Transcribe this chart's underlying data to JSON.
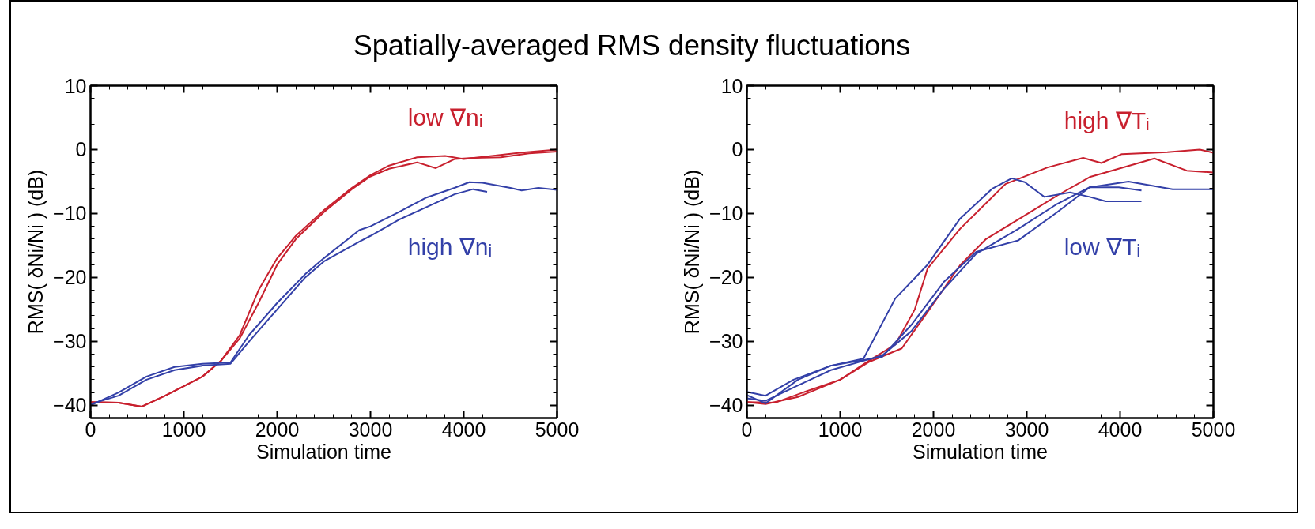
{
  "chart_data": [
    {
      "type": "line",
      "title": "Spatially-averaged RMS density fluctuations",
      "xlabel": "Simulation time",
      "ylabel": "RMS( δNi/Ni ) (dB)",
      "xlim": [
        0,
        5000
      ],
      "ylim": [
        -42,
        10
      ],
      "xticks": [
        0,
        1000,
        2000,
        3000,
        4000,
        5000
      ],
      "yticks": [
        -40,
        -30,
        -20,
        -10,
        0,
        10
      ],
      "grid": false,
      "series": [
        {
          "name": "low ∇nᵢ",
          "color": "#c8202e",
          "x": [
            0,
            300,
            550,
            800,
            1000,
            1200,
            1400,
            1600,
            1800,
            2000,
            2200,
            2500,
            2800,
            3000,
            3200,
            3500,
            3800,
            4000,
            4300,
            4600,
            5000
          ],
          "values": [
            -39.5,
            -39.6,
            -40.2,
            -38.5,
            -37,
            -35.5,
            -33,
            -29,
            -22,
            -17,
            -13.5,
            -9.5,
            -6,
            -4,
            -2.5,
            -1.2,
            -1,
            -1.5,
            -1,
            -0.5,
            0
          ]
        },
        {
          "color": "#c8202e",
          "x": [
            0,
            300,
            550,
            800,
            1000,
            1200,
            1400,
            1600,
            1800,
            2000,
            2200,
            2500,
            2800,
            3000,
            3200,
            3500,
            3700,
            3900,
            4100,
            4400,
            4700,
            5000
          ],
          "values": [
            -39.5,
            -39.6,
            -40.2,
            -38.5,
            -37,
            -35.5,
            -33,
            -29.5,
            -24,
            -18,
            -14,
            -9.8,
            -6.2,
            -4.2,
            -3,
            -2,
            -2.9,
            -1.5,
            -1.3,
            -1.2,
            -0.6,
            -0.3
          ]
        },
        {
          "name": "high ∇nᵢ",
          "color": "#3340a8",
          "x": [
            0,
            300,
            600,
            900,
            1200,
            1500,
            1700,
            2000,
            2300,
            2500,
            2880,
            3000,
            3300,
            3600,
            3900,
            4060,
            4200,
            4500,
            4620,
            4800,
            5000
          ],
          "values": [
            -40,
            -38,
            -35.5,
            -34,
            -33.5,
            -33.3,
            -29,
            -24,
            -19.5,
            -17,
            -12.6,
            -12,
            -9.8,
            -7.5,
            -6,
            -5.1,
            -5.2,
            -6,
            -6.4,
            -6,
            -6.3
          ]
        },
        {
          "color": "#3340a8",
          "x": [
            0,
            300,
            600,
            900,
            1200,
            1500,
            1700,
            2000,
            2300,
            2500,
            2880,
            3000,
            3300,
            3600,
            3900,
            4100,
            4250
          ],
          "values": [
            -39.8,
            -38.5,
            -36,
            -34.5,
            -33.8,
            -33.5,
            -30,
            -25,
            -20,
            -17.5,
            -14.4,
            -13.5,
            -11,
            -9,
            -7,
            -6.2,
            -6.6
          ]
        }
      ]
    },
    {
      "type": "line",
      "xlabel": "Simulation time",
      "ylabel": "RMS( δNi/Ni ) (dB)",
      "xlim": [
        0,
        5000
      ],
      "ylim": [
        -42,
        10
      ],
      "xticks": [
        0,
        1000,
        2000,
        3000,
        4000,
        5000
      ],
      "yticks": [
        -40,
        -30,
        -20,
        -10,
        0,
        10
      ],
      "grid": false,
      "series": [
        {
          "name": "high ∇Tᵢ",
          "color": "#c8202e",
          "x": [
            0,
            300,
            600,
            1000,
            1312,
            1590,
            1800,
            1937,
            2285,
            2771,
            3222,
            3604,
            3800,
            4020,
            4507,
            4854,
            5000
          ],
          "values": [
            -39.5,
            -39.6,
            -38,
            -36,
            -33,
            -30.5,
            -25,
            -18.6,
            -12.4,
            -5.4,
            -2.8,
            -1.3,
            -2.1,
            -0.7,
            -0.4,
            0,
            -0.5
          ]
        },
        {
          "color": "#c8202e",
          "x": [
            0,
            200,
            548,
            1000,
            1312,
            1660,
            1937,
            2285,
            2563,
            2979,
            3326,
            3674,
            4368,
            4715,
            5000
          ],
          "values": [
            -39.5,
            -39.8,
            -38.7,
            -36,
            -33.2,
            -31.1,
            -25.4,
            -18.1,
            -14,
            -10.3,
            -7.2,
            -4.3,
            -1.4,
            -3.3,
            -3.6
          ]
        },
        {
          "name": "low ∇Tᵢ",
          "color": "#3340a8",
          "x": [
            0,
            200,
            500,
            900,
            1300,
            1451,
            1764,
            2111,
            2458,
            2910,
            3326,
            3674,
            4090,
            4563,
            5000
          ],
          "values": [
            -37.9,
            -38.5,
            -36,
            -33.8,
            -32.8,
            -32.4,
            -27.4,
            -20.7,
            -16,
            -14.2,
            -9.8,
            -5.9,
            -5,
            -6.2,
            -6.2
          ]
        },
        {
          "color": "#3340a8",
          "x": [
            0,
            200,
            548,
            900,
            1250,
            1590,
            1937,
            2285,
            2632,
            2840,
            2979,
            3188,
            3465,
            3674,
            3847,
            4229
          ],
          "values": [
            -38.4,
            -39.7,
            -36,
            -33.8,
            -32.7,
            -23.3,
            -18,
            -10.8,
            -6.1,
            -4.5,
            -5.1,
            -7.4,
            -6.7,
            -7.4,
            -8.1,
            -8.1
          ]
        },
        {
          "color": "#3340a8",
          "x": [
            0,
            200,
            548,
            900,
            1451,
            1764,
            2111,
            2458,
            2910,
            3326,
            3674,
            3986,
            4229
          ],
          "values": [
            -38.9,
            -39.3,
            -36.9,
            -34.5,
            -32.2,
            -28.4,
            -21.8,
            -16.3,
            -12.4,
            -8.5,
            -5.9,
            -5.9,
            -6.4
          ]
        }
      ]
    }
  ]
}
